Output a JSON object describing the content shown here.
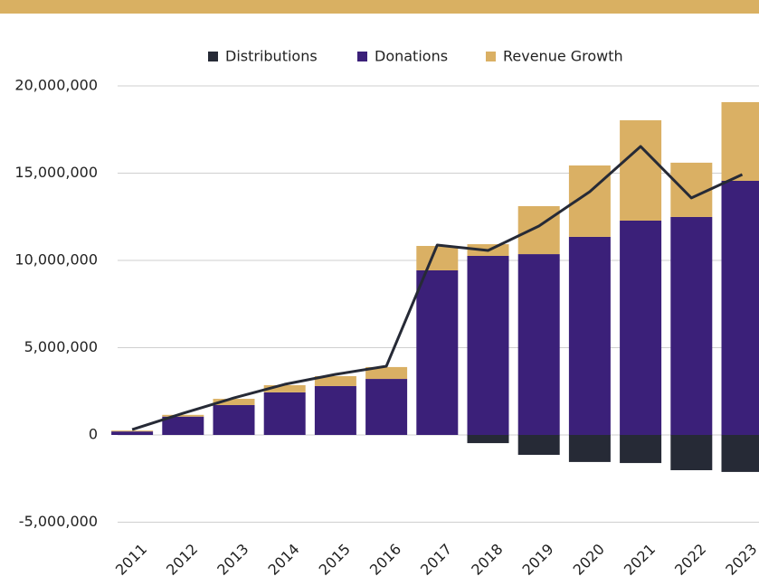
{
  "chart_data": {
    "type": "bar",
    "stacked": true,
    "categories": [
      "2011",
      "2012",
      "2013",
      "2014",
      "2015",
      "2016",
      "2017",
      "2018",
      "2019",
      "2020",
      "2021",
      "2022",
      "2023"
    ],
    "series": [
      {
        "name": "Distributions",
        "color": "#262a36",
        "values": [
          0,
          0,
          0,
          0,
          0,
          0,
          0,
          -470000,
          -1140000,
          -1550000,
          -1610000,
          -2020000,
          -2120000
        ]
      },
      {
        "name": "Donations",
        "color": "#3b2079",
        "values": [
          200000,
          1050000,
          1710000,
          2440000,
          2800000,
          3210000,
          9430000,
          10260000,
          10360000,
          11350000,
          12280000,
          12490000,
          14560000
        ]
      },
      {
        "name": "Revenue Growth",
        "color": "#dab064",
        "values": [
          50000,
          100000,
          360000,
          410000,
          570000,
          680000,
          1400000,
          670000,
          2750000,
          4090000,
          5750000,
          3110000,
          4510000
        ]
      },
      {
        "type": "line",
        "color": "#262a36",
        "values": [
          310000,
          1240000,
          2120000,
          2900000,
          3470000,
          3940000,
          10880000,
          10570000,
          11970000,
          13940000,
          16530000,
          13580000,
          14920000
        ]
      }
    ],
    "ylim": [
      -5500000,
      20000000
    ],
    "yticks": [
      {
        "value": -5000000,
        "label": "-5,000,000"
      },
      0,
      {
        "value": 5000000,
        "label": "5,000,000"
      },
      {
        "value": 10000000,
        "label": "10,000,000"
      },
      {
        "value": 15000000,
        "label": "15,000,000"
      },
      {
        "value": 20000000,
        "label": "20,000,000"
      }
    ],
    "grid": true,
    "legend": "top"
  }
}
